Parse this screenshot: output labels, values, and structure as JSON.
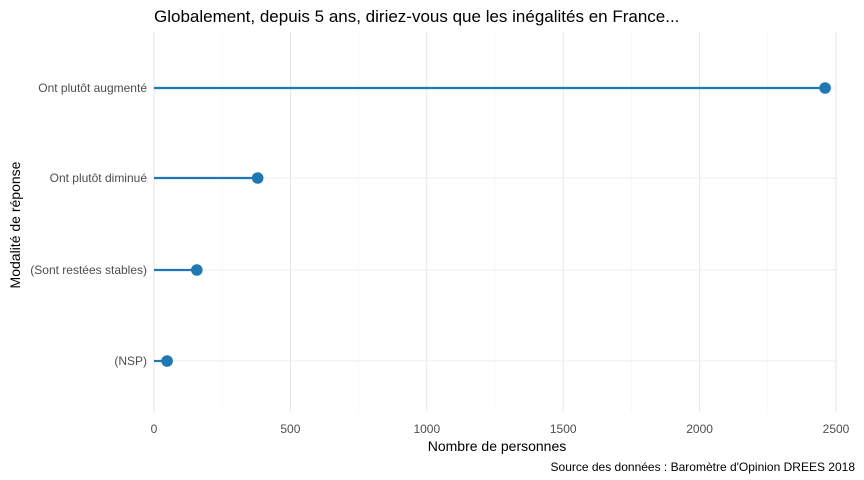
{
  "chart_data": {
    "type": "lollipop",
    "title": "Globalement, depuis 5 ans, diriez-vous que les inégalités en France...",
    "xlabel": "Nombre de personnes",
    "ylabel": "Modalité de réponse",
    "caption": "Source des données : Baromètre d'Opinion DREES 2018",
    "xlim": [
      0,
      2550
    ],
    "xticks": [
      0,
      500,
      1000,
      1500,
      2000,
      2500
    ],
    "grid": true,
    "legend": "none",
    "color": "#1f77b4",
    "categories": [
      "Ont plutôt augmenté",
      "Ont plutôt diminué",
      "(Sont restées stables)",
      "(NSP)"
    ],
    "values": [
      2460,
      380,
      157,
      48
    ]
  }
}
